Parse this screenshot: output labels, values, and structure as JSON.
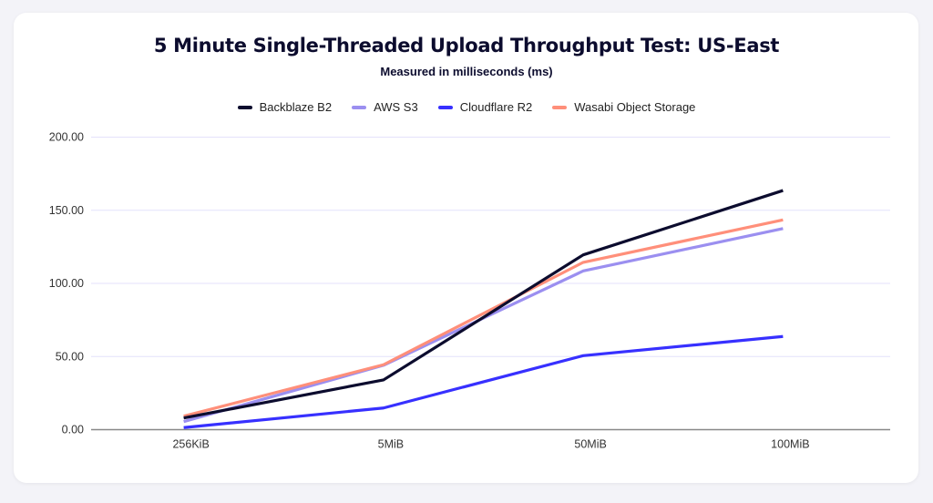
{
  "chart_data": {
    "type": "line",
    "title": "5 Minute Single-Threaded Upload Throughput Test: US-East",
    "subtitle": "Measured in milliseconds (ms)",
    "xlabel": "",
    "ylabel": "",
    "categories": [
      "256KiB",
      "5MiB",
      "50MiB",
      "100MiB"
    ],
    "ylim": [
      0,
      200
    ],
    "yticks": [
      "0.00",
      "50.00",
      "100.00",
      "150.00",
      "200.00"
    ],
    "ytick_values": [
      0,
      50,
      100,
      150,
      200
    ],
    "grid": true,
    "legend_position": "top",
    "series": [
      {
        "name": "Backblaze B2",
        "color": "#0c0c2e",
        "values": [
          8,
          34,
          119.5,
          163.5
        ]
      },
      {
        "name": "AWS S3",
        "color": "#9b8ff0",
        "values": [
          5.5,
          44,
          108.5,
          137.5
        ]
      },
      {
        "name": "Cloudflare R2",
        "color": "#3730ff",
        "values": [
          1.4,
          14.8,
          50.6,
          63.7
        ]
      },
      {
        "name": "Wasabi Object Storage",
        "color": "#ff8f7a",
        "values": [
          9.2,
          44.4,
          114.4,
          143.4
        ]
      }
    ]
  }
}
